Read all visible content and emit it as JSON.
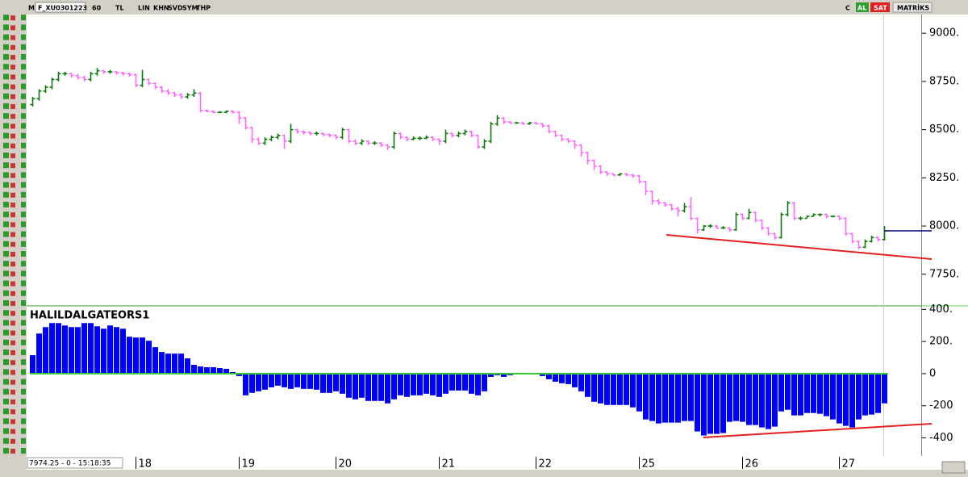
{
  "toolbar": {
    "left": [
      "M",
      "F_XU0301223",
      "60",
      "TL",
      "LIN",
      "KHN",
      "SVD",
      "SYM",
      "THP"
    ],
    "right": [
      "C",
      "AL",
      "SAT",
      "MATRİKS"
    ]
  },
  "status": "7974.25 - 0 - 15:18:35",
  "chart_data": [
    {
      "type": "ohlc",
      "up_color": "#0b7a0b",
      "down_color": "#ff66ff",
      "last_price_color": "#000080",
      "ylim": [
        7590,
        9097
      ],
      "yticks": [
        {
          "value": 7750,
          "label": "7750."
        },
        {
          "value": 8000,
          "label": "8000."
        },
        {
          "value": 8250,
          "label": "8250."
        },
        {
          "value": 8500,
          "label": "8500."
        },
        {
          "value": 8750,
          "label": "8750."
        },
        {
          "value": 9000,
          "label": "9000."
        }
      ],
      "open": [
        8630,
        8660,
        8700,
        8720,
        8760,
        8790,
        8790,
        8780,
        8770,
        8760,
        8790,
        8805,
        8800,
        8800,
        8795,
        8790,
        8785,
        8730,
        8760,
        8740,
        8720,
        8700,
        8690,
        8680,
        8670,
        8680,
        8690,
        8600,
        8595,
        8590,
        8590,
        8595,
        8590,
        8560,
        8510,
        8450,
        8430,
        8450,
        8460,
        8470,
        8440,
        8500,
        8490,
        8485,
        8480,
        8480,
        8475,
        8470,
        8460,
        8500,
        8440,
        8430,
        8440,
        8430,
        8430,
        8420,
        8410,
        8480,
        8460,
        8450,
        8455,
        8455,
        8460,
        8450,
        8440,
        8480,
        8470,
        8480,
        8490,
        8470,
        8410,
        8440,
        8530,
        8560,
        8540,
        8535,
        8535,
        8530,
        8535,
        8530,
        8520,
        8490,
        8470,
        8450,
        8440,
        8420,
        8380,
        8340,
        8310,
        8280,
        8270,
        8265,
        8270,
        8265,
        8260,
        8230,
        8180,
        8130,
        8120,
        8110,
        8090,
        8080,
        8100,
        8040,
        7980,
        8000,
        8000,
        7990,
        7990,
        7980,
        8060,
        8040,
        8070,
        8030,
        7990,
        7960,
        7940,
        8060,
        8120,
        8040,
        8040,
        8050,
        8060,
        8060,
        8050,
        8050,
        8040,
        7960,
        7920,
        7890,
        7920,
        7940,
        7930
      ],
      "high": [
        8670,
        8710,
        8730,
        8770,
        8800,
        8800,
        8795,
        8790,
        8780,
        8800,
        8820,
        8810,
        8810,
        8805,
        8800,
        8795,
        8790,
        8810,
        8765,
        8745,
        8725,
        8710,
        8695,
        8690,
        8690,
        8710,
        8695,
        8605,
        8600,
        8595,
        8600,
        8600,
        8595,
        8565,
        8515,
        8460,
        8460,
        8470,
        8480,
        8475,
        8530,
        8505,
        8495,
        8490,
        8490,
        8485,
        8480,
        8475,
        8510,
        8505,
        8450,
        8450,
        8445,
        8440,
        8435,
        8425,
        8490,
        8485,
        8465,
        8465,
        8465,
        8470,
        8465,
        8455,
        8500,
        8485,
        8490,
        8500,
        8495,
        8475,
        8450,
        8540,
        8575,
        8565,
        8545,
        8540,
        8540,
        8540,
        8540,
        8535,
        8525,
        8495,
        8475,
        8455,
        8445,
        8425,
        8385,
        8345,
        8315,
        8285,
        8275,
        8275,
        8275,
        8270,
        8265,
        8235,
        8185,
        8140,
        8125,
        8115,
        8100,
        8120,
        8150,
        8045,
        8005,
        8010,
        8005,
        8000,
        7995,
        8070,
        8065,
        8090,
        8075,
        8035,
        7995,
        7965,
        8070,
        8130,
        8125,
        8050,
        8055,
        8065,
        8065,
        8065,
        8055,
        8055,
        8045,
        7965,
        7925,
        7930,
        7950,
        7945,
        8000
      ],
      "low": [
        8620,
        8650,
        8690,
        8710,
        8750,
        8780,
        8770,
        8760,
        8750,
        8750,
        8780,
        8790,
        8790,
        8785,
        8780,
        8775,
        8720,
        8720,
        8730,
        8710,
        8690,
        8680,
        8670,
        8660,
        8660,
        8670,
        8590,
        8590,
        8585,
        8585,
        8585,
        8585,
        8530,
        8500,
        8430,
        8420,
        8420,
        8440,
        8450,
        8400,
        8430,
        8480,
        8475,
        8470,
        8470,
        8465,
        8460,
        8450,
        8450,
        8430,
        8420,
        8420,
        8420,
        8420,
        8410,
        8395,
        8400,
        8450,
        8440,
        8445,
        8445,
        8450,
        8440,
        8420,
        8430,
        8460,
        8460,
        8470,
        8460,
        8400,
        8400,
        8430,
        8520,
        8530,
        8530,
        8530,
        8525,
        8525,
        8525,
        8510,
        8480,
        8460,
        8440,
        8430,
        8400,
        8360,
        8320,
        8290,
        8270,
        8260,
        8260,
        8260,
        8260,
        8250,
        8220,
        8160,
        8110,
        8110,
        8100,
        8080,
        8050,
        8070,
        8030,
        7960,
        7975,
        7990,
        7985,
        7985,
        7970,
        7975,
        8030,
        8035,
        8020,
        7980,
        7950,
        7930,
        7935,
        8050,
        8030,
        8030,
        8040,
        8050,
        8050,
        8040,
        8045,
        8030,
        7950,
        7910,
        7880,
        7885,
        7915,
        7920,
        7925
      ],
      "close": [
        8660,
        8700,
        8720,
        8760,
        8790,
        8790,
        8780,
        8770,
        8760,
        8790,
        8805,
        8800,
        8800,
        8795,
        8790,
        8785,
        8730,
        8760,
        8740,
        8720,
        8700,
        8690,
        8680,
        8670,
        8680,
        8690,
        8600,
        8595,
        8590,
        8590,
        8595,
        8590,
        8560,
        8510,
        8450,
        8430,
        8450,
        8460,
        8470,
        8440,
        8500,
        8490,
        8485,
        8480,
        8480,
        8475,
        8470,
        8460,
        8500,
        8440,
        8430,
        8440,
        8430,
        8430,
        8420,
        8410,
        8480,
        8460,
        8450,
        8455,
        8455,
        8460,
        8450,
        8440,
        8480,
        8470,
        8480,
        8490,
        8470,
        8410,
        8440,
        8530,
        8560,
        8540,
        8535,
        8535,
        8530,
        8535,
        8530,
        8520,
        8490,
        8470,
        8450,
        8440,
        8420,
        8380,
        8340,
        8310,
        8280,
        8270,
        8265,
        8270,
        8265,
        8260,
        8230,
        8180,
        8130,
        8120,
        8110,
        8090,
        8080,
        8100,
        8040,
        7980,
        8000,
        8000,
        7990,
        7990,
        7980,
        8060,
        8040,
        8070,
        8030,
        7990,
        7960,
        7940,
        8060,
        8120,
        8040,
        8040,
        8050,
        8060,
        8060,
        8050,
        8050,
        8040,
        7960,
        7920,
        7890,
        7920,
        7940,
        7930,
        7975
      ]
    },
    {
      "type": "bar",
      "title": "HALILDALGATEORS1",
      "color": "#0000ff",
      "zero_line_color": "#33cc33",
      "ylim": [
        -513,
        417
      ],
      "yticks": [
        {
          "value": 400,
          "label": "400."
        },
        {
          "value": 200,
          "label": "200."
        },
        0,
        -200,
        -400
      ],
      "categories": [
        null,
        null,
        null,
        null,
        null,
        null,
        null,
        null,
        null,
        null,
        null,
        null,
        null,
        null,
        null,
        null,
        "18",
        null,
        null,
        null,
        null,
        null,
        null,
        null,
        null,
        null,
        null,
        null,
        null,
        null,
        null,
        null,
        "19",
        null,
        null,
        null,
        null,
        null,
        null,
        null,
        null,
        null,
        null,
        null,
        null,
        null,
        null,
        "20",
        null,
        null,
        null,
        null,
        null,
        null,
        null,
        null,
        null,
        null,
        null,
        null,
        null,
        null,
        null,
        "21",
        null,
        null,
        null,
        null,
        null,
        null,
        null,
        null,
        null,
        null,
        null,
        null,
        null,
        null,
        "22",
        null,
        null,
        null,
        null,
        null,
        null,
        null,
        null,
        null,
        null,
        null,
        null,
        null,
        null,
        null,
        "25",
        null,
        null,
        null,
        null,
        null,
        null,
        null,
        null,
        null,
        null,
        null,
        null,
        null,
        null,
        null,
        "26",
        null,
        null,
        null,
        null,
        null,
        null,
        null,
        null,
        null,
        null,
        null,
        null,
        null,
        null,
        "27",
        null,
        null,
        null,
        null,
        null,
        null,
        null
      ],
      "values": [
        115,
        250,
        290,
        315,
        315,
        300,
        290,
        290,
        315,
        315,
        295,
        280,
        300,
        290,
        280,
        230,
        225,
        225,
        205,
        165,
        135,
        125,
        125,
        125,
        95,
        55,
        45,
        40,
        40,
        35,
        30,
        10,
        -15,
        -135,
        -120,
        -110,
        -100,
        -85,
        -75,
        -85,
        -95,
        -85,
        -95,
        -95,
        -100,
        -120,
        -120,
        -110,
        -125,
        -150,
        -160,
        -150,
        -170,
        -170,
        -170,
        -185,
        -160,
        -135,
        -145,
        -135,
        -135,
        -125,
        -135,
        -145,
        -125,
        -105,
        -105,
        -105,
        -125,
        -135,
        -110,
        -20,
        -10,
        -20,
        -10,
        -5,
        -3,
        5,
        -5,
        -15,
        -35,
        -50,
        -60,
        -65,
        -85,
        -110,
        -145,
        -175,
        -185,
        -195,
        -195,
        -195,
        -195,
        -210,
        -235,
        -285,
        -295,
        -310,
        -305,
        -305,
        -305,
        -295,
        -295,
        -360,
        -385,
        -375,
        -375,
        -370,
        -300,
        -295,
        -300,
        -320,
        -320,
        -335,
        -345,
        -330,
        -235,
        -225,
        -260,
        -260,
        -245,
        -245,
        -250,
        -265,
        -285,
        -310,
        -325,
        -335,
        -285,
        -260,
        -255,
        -245,
        -185
      ]
    }
  ]
}
